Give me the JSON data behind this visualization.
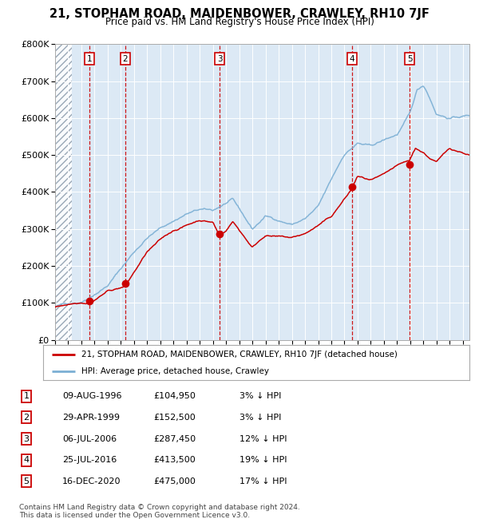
{
  "title": "21, STOPHAM ROAD, MAIDENBOWER, CRAWLEY, RH10 7JF",
  "subtitle": "Price paid vs. HM Land Registry's House Price Index (HPI)",
  "legend_line1": "21, STOPHAM ROAD, MAIDENBOWER, CRAWLEY, RH10 7JF (detached house)",
  "legend_line2": "HPI: Average price, detached house, Crawley",
  "footer1": "Contains HM Land Registry data © Crown copyright and database right 2024.",
  "footer2": "This data is licensed under the Open Government Licence v3.0.",
  "sale_prices": [
    104950,
    152500,
    287450,
    413500,
    475000
  ],
  "sale_labels": [
    "1",
    "2",
    "3",
    "4",
    "5"
  ],
  "sale_table": [
    [
      "1",
      "09-AUG-1996",
      "£104,950",
      "3% ↓ HPI"
    ],
    [
      "2",
      "29-APR-1999",
      "£152,500",
      "3% ↓ HPI"
    ],
    [
      "3",
      "06-JUL-2006",
      "£287,450",
      "12% ↓ HPI"
    ],
    [
      "4",
      "25-JUL-2016",
      "£413,500",
      "19% ↓ HPI"
    ],
    [
      "5",
      "16-DEC-2020",
      "£475,000",
      "17% ↓ HPI"
    ]
  ],
  "hpi_color": "#7bafd4",
  "price_color": "#cc0000",
  "vline_color": "#cc0000",
  "plot_bg_color": "#dce9f5",
  "ylim": [
    0,
    800000
  ],
  "yticks": [
    0,
    100000,
    200000,
    300000,
    400000,
    500000,
    600000,
    700000,
    800000
  ],
  "xlim_start": 1994.0,
  "xlim_end": 2025.5,
  "sale_years": [
    1996.614,
    1999.328,
    2006.511,
    2016.559,
    2020.962
  ]
}
